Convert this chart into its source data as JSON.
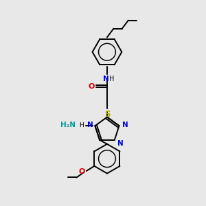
{
  "bg_color": "#e8e8e8",
  "bond_color": "#000000",
  "bond_lw": 1.4,
  "N_color": "#0000dd",
  "O_color": "#dd0000",
  "S_color": "#aaaa00",
  "NH2_color": "#009999",
  "figsize": [
    3.0,
    3.0
  ],
  "dpi": 100,
  "xlim": [
    0,
    10
  ],
  "ylim": [
    0,
    10
  ]
}
